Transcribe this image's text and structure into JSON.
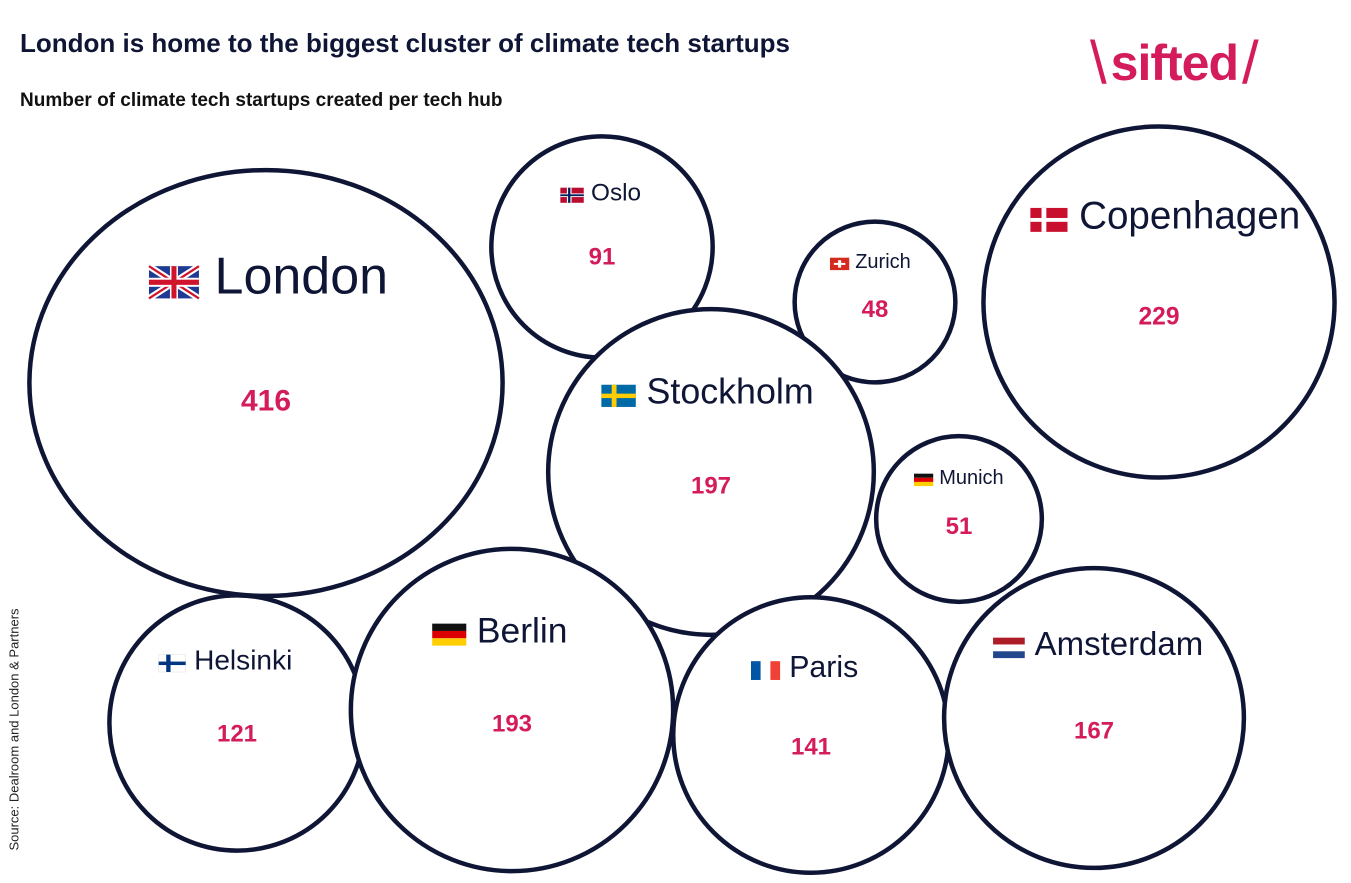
{
  "title": "London is home to the biggest cluster of climate tech startups",
  "subtitle": "Number of climate tech startups created per tech hub",
  "brand": {
    "name": "sifted",
    "slash_left": "\\",
    "slash_right": "/",
    "color": "#d41c5c"
  },
  "source": "Source: Dealroom and London & Partners",
  "colors": {
    "circle_stroke": "#0f1535",
    "label": "#0f1535",
    "value": "#d41c5c"
  },
  "chart_data": {
    "type": "bubble",
    "value_label": "Number of climate tech startups created",
    "points": [
      {
        "name": "London",
        "value": 416,
        "flag": "gb"
      },
      {
        "name": "Oslo",
        "value": 91,
        "flag": "no"
      },
      {
        "name": "Zurich",
        "value": 48,
        "flag": "ch"
      },
      {
        "name": "Copenhagen",
        "value": 229,
        "flag": "dk"
      },
      {
        "name": "Stockholm",
        "value": 197,
        "flag": "se"
      },
      {
        "name": "Munich",
        "value": 51,
        "flag": "de"
      },
      {
        "name": "Helsinki",
        "value": 121,
        "flag": "fi"
      },
      {
        "name": "Berlin",
        "value": 193,
        "flag": "de"
      },
      {
        "name": "Paris",
        "value": 141,
        "flag": "fr"
      },
      {
        "name": "Amsterdam",
        "value": 167,
        "flag": "nl"
      }
    ]
  }
}
